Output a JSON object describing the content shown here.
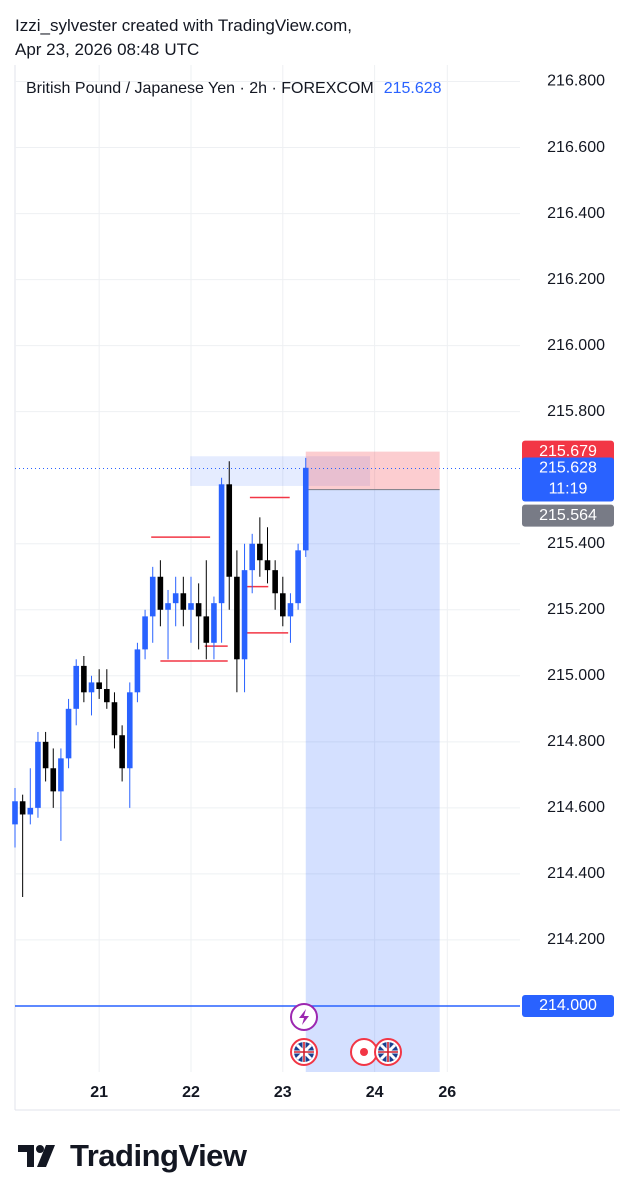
{
  "brand": "TradingView",
  "chart_data": {
    "type": "candlestick",
    "header": "Izzi_sylvester created with TradingView.com,",
    "timestamp": "Apr 23, 2026 08:48 UTC",
    "title": "British Pound / Japanese Yen · 2h · FOREXCOM",
    "last_price": 215.628,
    "countdown": "11:19",
    "up_color": "#2962ff",
    "down_color": "#000000",
    "x": [
      1,
      2,
      3,
      4,
      5,
      6,
      7,
      8,
      9,
      10,
      11,
      12,
      13,
      14,
      15,
      16,
      17,
      18,
      19,
      20,
      21,
      22,
      23,
      24,
      25,
      26,
      27,
      28,
      29,
      30,
      31,
      32,
      33,
      34,
      35,
      36,
      37,
      38,
      39
    ],
    "open": [
      214.55,
      214.62,
      214.58,
      214.6,
      214.8,
      214.72,
      214.65,
      214.75,
      214.9,
      215.03,
      214.95,
      214.98,
      214.96,
      214.92,
      214.82,
      214.72,
      214.95,
      215.08,
      215.18,
      215.3,
      215.2,
      215.22,
      215.25,
      215.2,
      215.22,
      215.18,
      215.1,
      215.22,
      215.58,
      215.3,
      215.05,
      215.32,
      215.4,
      215.35,
      215.32,
      215.25,
      215.18,
      215.22,
      215.38
    ],
    "high": [
      214.66,
      214.64,
      214.72,
      214.83,
      214.83,
      214.78,
      214.78,
      214.93,
      215.05,
      215.06,
      215.0,
      215.02,
      215.02,
      214.95,
      214.85,
      214.98,
      215.1,
      215.2,
      215.33,
      215.35,
      215.26,
      215.3,
      215.3,
      215.3,
      215.28,
      215.35,
      215.24,
      215.6,
      215.65,
      215.38,
      215.4,
      215.43,
      215.48,
      215.45,
      215.35,
      215.3,
      215.25,
      215.4,
      215.66
    ],
    "low": [
      214.48,
      214.33,
      214.55,
      214.57,
      214.68,
      214.6,
      214.5,
      214.72,
      214.85,
      214.92,
      214.88,
      214.93,
      214.9,
      214.78,
      214.68,
      214.6,
      214.92,
      215.05,
      215.1,
      215.15,
      215.05,
      215.15,
      215.15,
      215.1,
      215.08,
      215.05,
      215.05,
      215.1,
      215.2,
      214.95,
      214.95,
      215.25,
      215.3,
      215.28,
      215.2,
      215.15,
      215.1,
      215.2,
      215.36
    ],
    "close": [
      214.62,
      214.58,
      214.6,
      214.8,
      214.72,
      214.65,
      214.75,
      214.9,
      215.03,
      214.95,
      214.98,
      214.96,
      214.92,
      214.82,
      214.72,
      214.95,
      215.08,
      215.18,
      215.3,
      215.2,
      215.22,
      215.25,
      215.2,
      215.22,
      215.18,
      215.1,
      215.22,
      215.58,
      215.3,
      215.05,
      215.32,
      215.4,
      215.35,
      215.32,
      215.25,
      215.18,
      215.22,
      215.38,
      215.63
    ],
    "xlim": [
      1,
      67
    ],
    "xticks": [
      {
        "value": 12,
        "label": "21"
      },
      {
        "value": 24,
        "label": "22"
      },
      {
        "value": 36,
        "label": "23"
      },
      {
        "value": 48,
        "label": "24"
      },
      {
        "value": 57.5,
        "label": "26"
      }
    ],
    "ylim": [
      213.8,
      216.85
    ],
    "yticks": [
      {
        "value": 216.8,
        "label": "216.800"
      },
      {
        "value": 216.6,
        "label": "216.600"
      },
      {
        "value": 216.4,
        "label": "216.400"
      },
      {
        "value": 216.2,
        "label": "216.200"
      },
      {
        "value": 216,
        "label": "216.000"
      },
      {
        "value": 215.8,
        "label": "215.800"
      },
      {
        "value": 215.4,
        "label": "215.400"
      },
      {
        "value": 215.2,
        "label": "215.200"
      },
      {
        "value": 215,
        "label": "215.000"
      },
      {
        "value": 214.8,
        "label": "214.800"
      },
      {
        "value": 214.6,
        "label": "214.600"
      },
      {
        "value": 214.4,
        "label": "214.400"
      },
      {
        "value": 214.2,
        "label": "214.200"
      }
    ],
    "grid": true,
    "position": {
      "stop": 215.679,
      "entry": 215.564,
      "target": 213.8,
      "x": [
        39,
        56.5
      ],
      "stop_color": "#f23645",
      "target_color": "#2962ff"
    },
    "zone": {
      "top": 215.665,
      "bottom": 215.575,
      "x": [
        23.9,
        47.4
      ],
      "color": "#2962ff"
    },
    "levels": [
      {
        "value": 215.42,
        "x": [
          18.8,
          26.5
        ]
      },
      {
        "value": 215.045,
        "x": [
          20,
          28.8
        ]
      },
      {
        "value": 215.09,
        "x": [
          25.8,
          28.8
        ]
      },
      {
        "value": 215.54,
        "x": [
          31.7,
          36.9
        ]
      },
      {
        "value": 215.27,
        "x": [
          30.9,
          34.1
        ]
      },
      {
        "value": 215.13,
        "x": [
          30.8,
          36.7
        ]
      }
    ],
    "level_color": "#f23645",
    "hline": {
      "value": {
        "value": 214,
        "label": "214.000"
      },
      "color": "#2962ff"
    }
  }
}
